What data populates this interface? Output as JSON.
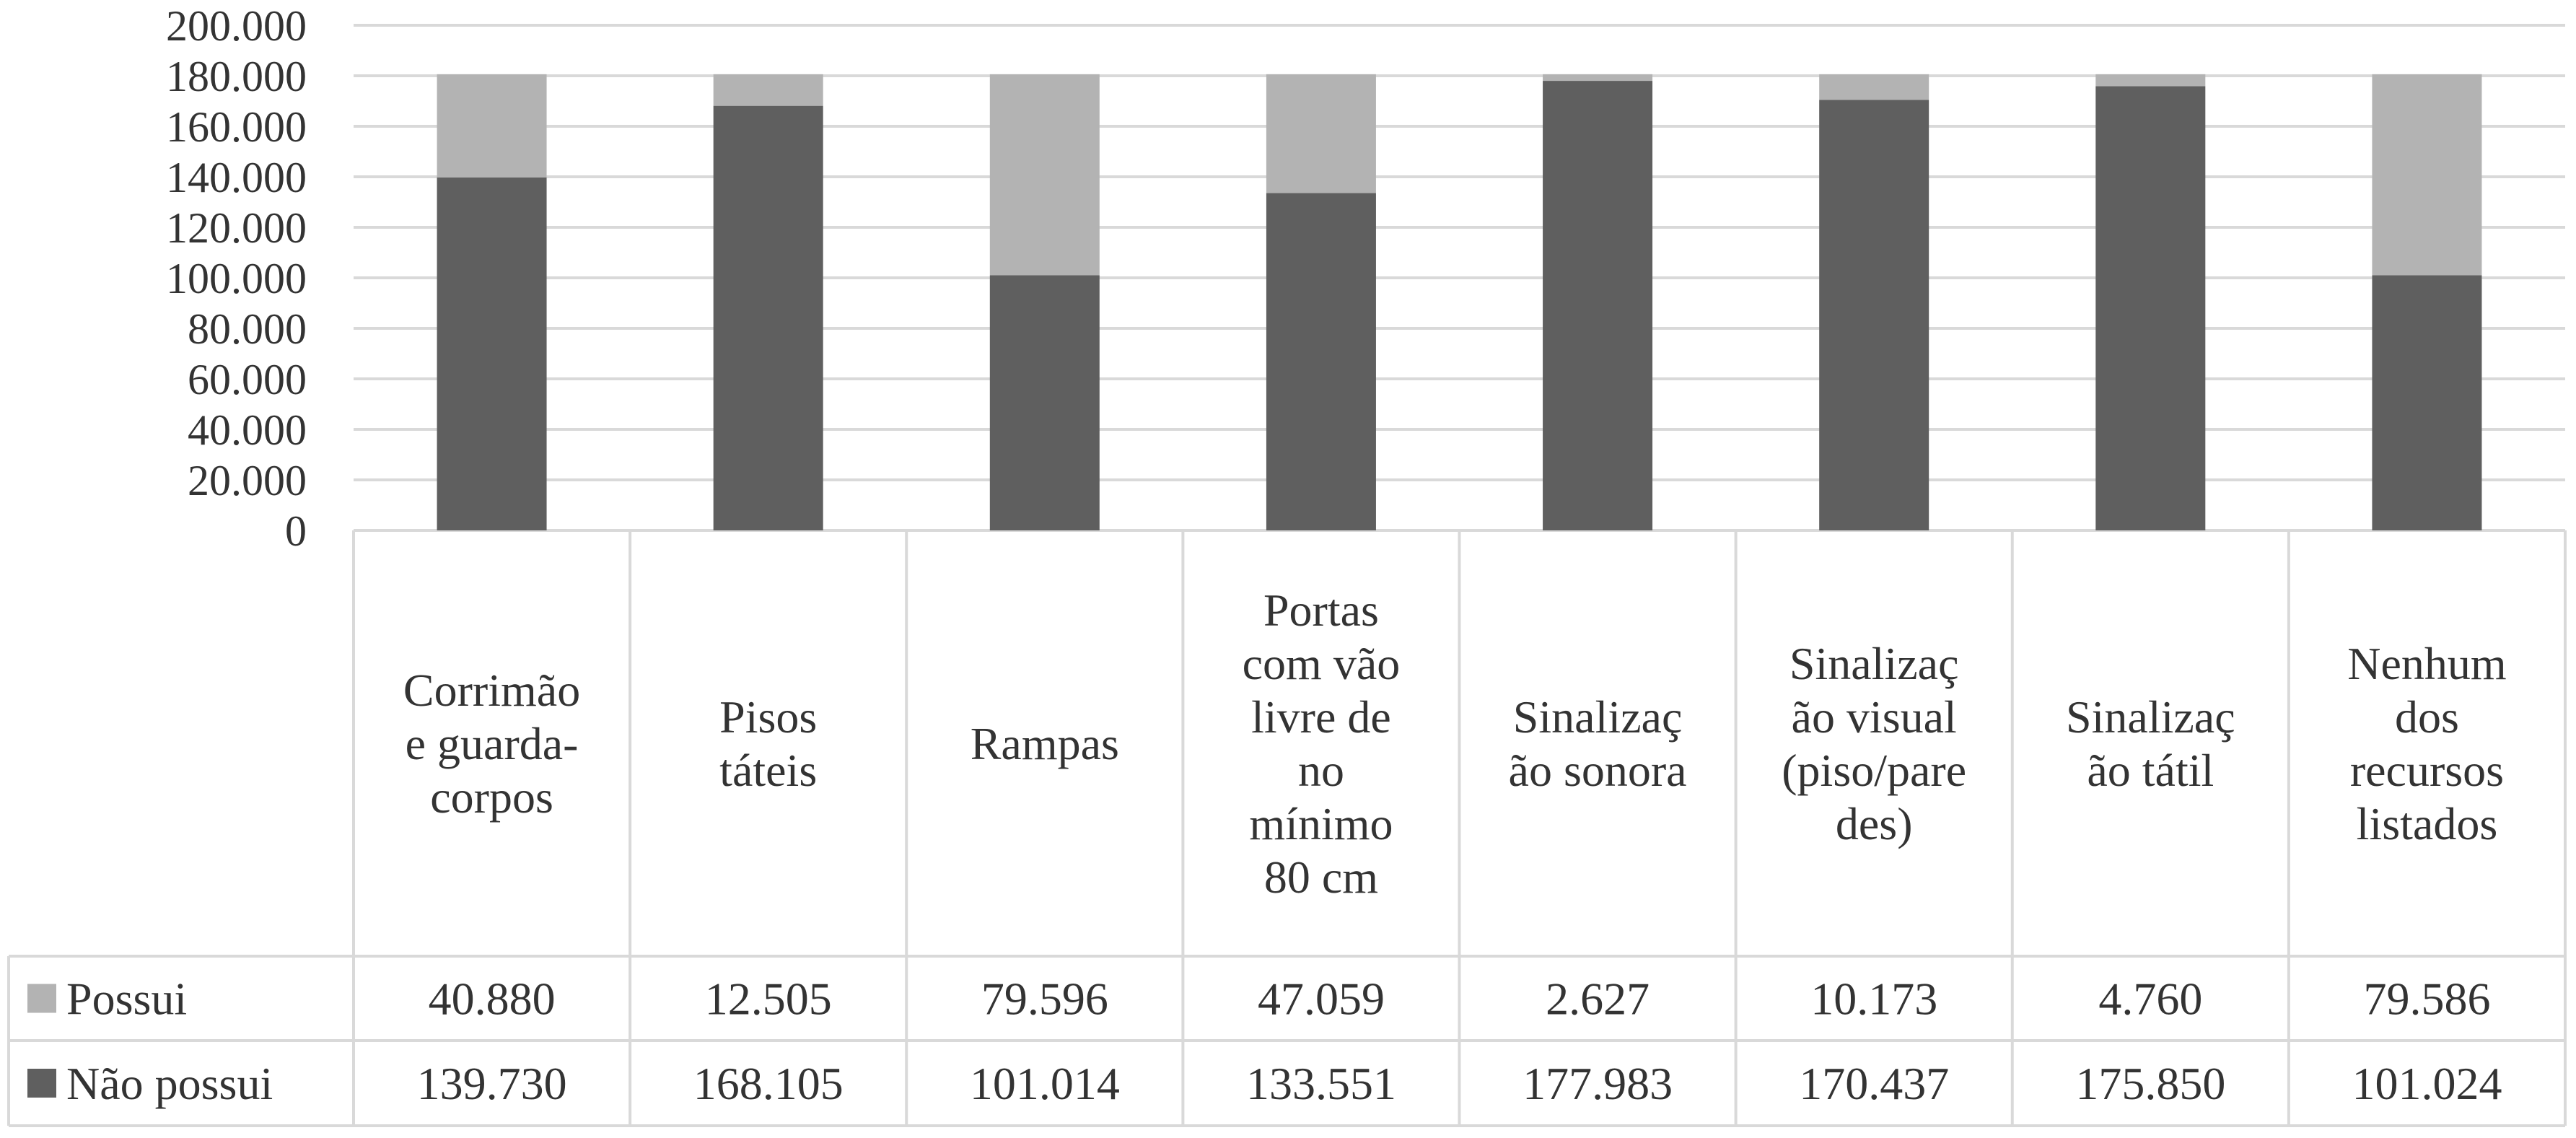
{
  "chart_data": {
    "type": "bar",
    "stacked": true,
    "data_table": true,
    "categories": [
      "Corrimão e guarda-corpos",
      "Pisos táteis",
      "Rampas",
      "Portas com vão livre de no mínimo 80 cm",
      "Sinalização sonora",
      "Sinalização visual (piso/paredes)",
      "Sinalização tátil",
      "Nenhum dos recursos listados"
    ],
    "category_label_lines": [
      [
        "Corrimão",
        "e guarda-",
        "corpos"
      ],
      [
        "Pisos",
        "táteis"
      ],
      [
        "Rampas"
      ],
      [
        "Portas",
        "com vão",
        "livre de",
        "no",
        "mínimo",
        "80 cm"
      ],
      [
        "Sinalizaç",
        "ão sonora"
      ],
      [
        "Sinalizaç",
        "ão visual",
        "(piso/pare",
        "des)"
      ],
      [
        "Sinalizaç",
        "ão tátil"
      ],
      [
        "Nenhum",
        "dos",
        "recursos",
        "listados"
      ]
    ],
    "series": [
      {
        "name": "Possui",
        "color": "#b3b3b3",
        "values": [
          40880,
          12505,
          79596,
          47059,
          2627,
          10173,
          4760,
          79586
        ],
        "labels": [
          "40.880",
          "12.505",
          "79.596",
          "47.059",
          "2.627",
          "10.173",
          "4.760",
          "79.586"
        ]
      },
      {
        "name": "Não possui",
        "color": "#5f5f5f",
        "values": [
          139730,
          168105,
          101014,
          133551,
          177983,
          170437,
          175850,
          101024
        ],
        "labels": [
          "139.730",
          "168.105",
          "101.014",
          "133.551",
          "177.983",
          "170.437",
          "175.850",
          "101.024"
        ]
      }
    ],
    "y_ticks": [
      0,
      20000,
      40000,
      60000,
      80000,
      100000,
      120000,
      140000,
      160000,
      180000,
      200000
    ],
    "y_tick_labels": [
      "0",
      "20.000",
      "40.000",
      "60.000",
      "80.000",
      "100.000",
      "120.000",
      "140.000",
      "160.000",
      "180.000",
      "200.000"
    ],
    "ylim": [
      0,
      200000
    ],
    "grid": true,
    "gridline_color": "#d9d9d9",
    "table_border_color": "#d9d9d9"
  }
}
